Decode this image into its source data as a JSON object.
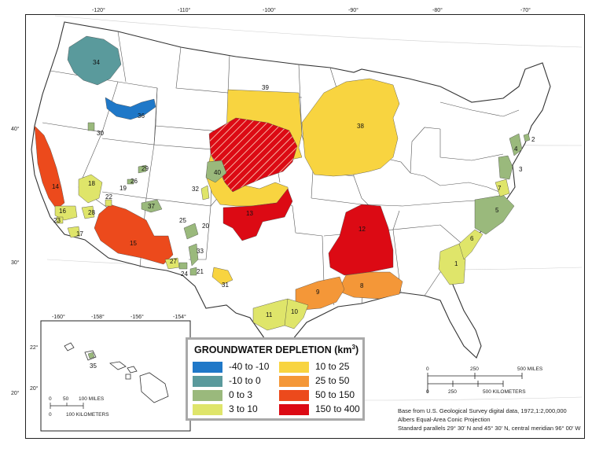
{
  "longitude_ticks": [
    "-120°",
    "-110°",
    "-100°",
    "-90°",
    "-80°",
    "-70°"
  ],
  "latitude_ticks": [
    "40°",
    "30°",
    "20°"
  ],
  "inset": {
    "longitude_ticks": [
      "-160°",
      "-158°",
      "-156°",
      "-154°"
    ],
    "latitude_ticks": [
      "22°",
      "20°"
    ],
    "scale_miles": [
      "0",
      "50",
      "100 MILES"
    ],
    "scale_km": [
      "0",
      "100 KILOMETERS"
    ],
    "aquifer_label": "35"
  },
  "legend": {
    "title": "GROUNDWATER DEPLETION (km",
    "title_superscript": "3",
    "title_close": ")",
    "classes": [
      {
        "label": "-40 to -10",
        "color": "#1f78c8"
      },
      {
        "label": "-10 to 0",
        "color": "#5a9a9c"
      },
      {
        "label": "0 to 3",
        "color": "#9ab97c"
      },
      {
        "label": "3 to 10",
        "color": "#dfe56a"
      },
      {
        "label": "10 to 25",
        "color": "#f8d440"
      },
      {
        "label": "25 to 50",
        "color": "#f49738"
      },
      {
        "label": "50 to 150",
        "color": "#ec4a1c"
      },
      {
        "label": "150 to 400",
        "color": "#dc0a14"
      }
    ]
  },
  "scale_bar": {
    "miles": [
      "0",
      "250",
      "500 MILES"
    ],
    "km": [
      "0",
      "250",
      "500 KILOMETERS"
    ]
  },
  "credit": {
    "line1": "Base from U.S. Geological Survey digital data, 1972,1:2,000,000",
    "line2": "Albers Equal-Area Conic Projection",
    "line3": "Standard parallels 29° 30′ N and 45° 30′ N, central meridian 96° 00′ W"
  },
  "aquifers": [
    {
      "id": "1",
      "color": "#dfe56a"
    },
    {
      "id": "2",
      "color": "#9ab97c"
    },
    {
      "id": "3",
      "color": "#9ab97c"
    },
    {
      "id": "4",
      "color": "#9ab97c"
    },
    {
      "id": "5",
      "color": "#9ab97c"
    },
    {
      "id": "6",
      "color": "#dfe56a"
    },
    {
      "id": "7",
      "color": "#dfe56a"
    },
    {
      "id": "8",
      "color": "#f49738"
    },
    {
      "id": "9",
      "color": "#f49738"
    },
    {
      "id": "10",
      "color": "#dfe56a"
    },
    {
      "id": "11",
      "color": "#dfe56a"
    },
    {
      "id": "12",
      "color": "#dc0a14"
    },
    {
      "id": "13",
      "color": "#dc0a14"
    },
    {
      "id": "14",
      "color": "#ec4a1c"
    },
    {
      "id": "15",
      "color": "#ec4a1c"
    },
    {
      "id": "16",
      "color": "#dfe56a"
    },
    {
      "id": "17",
      "color": "#dfe56a"
    },
    {
      "id": "18",
      "color": "#dfe56a"
    },
    {
      "id": "19",
      "color": "#9ab97c"
    },
    {
      "id": "20",
      "color": "#9ab97c"
    },
    {
      "id": "21",
      "color": "#9ab97c"
    },
    {
      "id": "22",
      "color": "#dfe56a"
    },
    {
      "id": "23",
      "color": "#dfe56a"
    },
    {
      "id": "24",
      "color": "#9ab97c"
    },
    {
      "id": "25",
      "color": "#9ab97c"
    },
    {
      "id": "26",
      "color": "#9ab97c"
    },
    {
      "id": "27",
      "color": "#dfe56a"
    },
    {
      "id": "28",
      "color": "#dfe56a"
    },
    {
      "id": "29",
      "color": "#9ab97c"
    },
    {
      "id": "30",
      "color": "#9ab97c"
    },
    {
      "id": "31",
      "color": "#f8d440"
    },
    {
      "id": "32",
      "color": "#dfe56a"
    },
    {
      "id": "33",
      "color": "#9ab97c"
    },
    {
      "id": "34",
      "color": "#5a9a9c"
    },
    {
      "id": "35",
      "color": "#9ab97c"
    },
    {
      "id": "36",
      "color": "#1f78c8"
    },
    {
      "id": "37",
      "color": "#9ab97c"
    },
    {
      "id": "38",
      "color": "#f8d440"
    },
    {
      "id": "39",
      "color": "#f8d440"
    },
    {
      "id": "40",
      "color": "#9ab97c"
    }
  ]
}
